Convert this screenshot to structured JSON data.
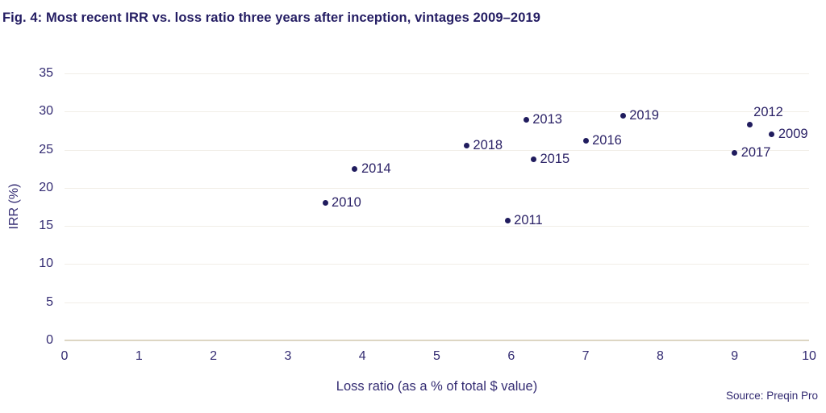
{
  "chart_data": {
    "type": "scatter",
    "title": "Fig. 4: Most recent IRR vs. loss ratio three years after inception, vintages 2009–2019",
    "xlabel": "Loss ratio (as a % of total $ value)",
    "ylabel": "IRR (%)",
    "xlim": [
      0,
      10
    ],
    "ylim": [
      0,
      35
    ],
    "x_ticks": [
      0,
      1,
      2,
      3,
      4,
      5,
      6,
      7,
      8,
      9,
      10
    ],
    "y_ticks": [
      0,
      5,
      10,
      15,
      20,
      25,
      30,
      35
    ],
    "grid": "horizontal-only",
    "legend": "none",
    "points": [
      {
        "label": "2010",
        "x": 3.5,
        "y": 18.0,
        "label_position": "right"
      },
      {
        "label": "2014",
        "x": 3.9,
        "y": 22.5,
        "label_position": "right"
      },
      {
        "label": "2018",
        "x": 5.4,
        "y": 25.5,
        "label_position": "right"
      },
      {
        "label": "2011",
        "x": 5.95,
        "y": 15.7,
        "label_position": "right"
      },
      {
        "label": "2013",
        "x": 6.2,
        "y": 28.9,
        "label_position": "right"
      },
      {
        "label": "2015",
        "x": 6.3,
        "y": 23.7,
        "label_position": "right"
      },
      {
        "label": "2016",
        "x": 7.0,
        "y": 26.2,
        "label_position": "right"
      },
      {
        "label": "2019",
        "x": 7.5,
        "y": 29.4,
        "label_position": "right"
      },
      {
        "label": "2017",
        "x": 9.0,
        "y": 24.6,
        "label_position": "right"
      },
      {
        "label": "2012",
        "x": 9.2,
        "y": 28.3,
        "label_position": "above-right"
      },
      {
        "label": "2009",
        "x": 9.5,
        "y": 27.0,
        "label_position": "right"
      }
    ],
    "source": "Source: Preqin Pro"
  },
  "colors": {
    "title": "#241d63",
    "axis_text": "#332b72",
    "point": "#201c5e",
    "point_label": "#2c2367",
    "gridline": "#f1eee7",
    "axis_line": "#ddd6c3",
    "background": "#ffffff"
  }
}
